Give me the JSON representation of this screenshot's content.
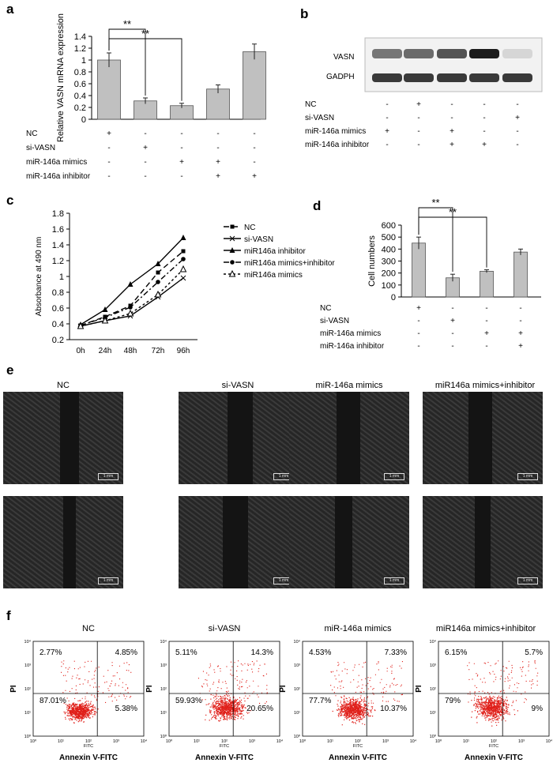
{
  "panels": {
    "a": {
      "letter": "a"
    },
    "b": {
      "letter": "b"
    },
    "c": {
      "letter": "c"
    },
    "d": {
      "letter": "d"
    },
    "e": {
      "letter": "e"
    },
    "f": {
      "letter": "f"
    }
  },
  "chart_data": [
    {
      "id": "a",
      "type": "bar",
      "ylabel": "Relative VASN mRNA expression",
      "ylim": [
        0,
        1.4
      ],
      "yticks": [
        "0",
        "0.2",
        "0.4",
        "0.6",
        "0.8",
        "1",
        "1.2",
        "1.4"
      ],
      "values": [
        1.0,
        0.31,
        0.23,
        0.51,
        1.14
      ],
      "errors": [
        0.12,
        0.05,
        0.04,
        0.07,
        0.13
      ],
      "significance": [
        {
          "from": 0,
          "to": 1,
          "label": "**"
        },
        {
          "from": 0,
          "to": 2,
          "label": "**"
        }
      ],
      "conditions": [
        {
          "name": "NC",
          "signs": [
            "+",
            "-",
            "-",
            "-",
            "-"
          ]
        },
        {
          "name": "si-VASN",
          "signs": [
            "-",
            "+",
            "-",
            "-",
            "-"
          ]
        },
        {
          "name": "miR-146a mimics",
          "signs": [
            "-",
            "-",
            "+",
            "+",
            "-"
          ]
        },
        {
          "name": "miR-146a inhibitor",
          "signs": [
            "-",
            "-",
            "-",
            "+",
            "+"
          ]
        }
      ]
    },
    {
      "id": "c",
      "type": "line",
      "ylabel": "Absorbance at 490 nm",
      "ylim": [
        0.2,
        1.8
      ],
      "yticks": [
        "0.2",
        "0.4",
        "0.6",
        "0.8",
        "1",
        "1.2",
        "1.4",
        "1.6",
        "1.8"
      ],
      "x": [
        "0h",
        "24h",
        "48h",
        "72h",
        "96h"
      ],
      "series": [
        {
          "name": "NC",
          "values": [
            0.38,
            0.49,
            0.63,
            1.05,
            1.32
          ]
        },
        {
          "name": "si-VASN",
          "values": [
            0.37,
            0.44,
            0.5,
            0.74,
            0.98
          ]
        },
        {
          "name": "miR146a inhibitor",
          "values": [
            0.39,
            0.58,
            0.9,
            1.16,
            1.49
          ]
        },
        {
          "name": "miR146a mimics+inhibitor",
          "values": [
            0.38,
            0.48,
            0.61,
            0.93,
            1.22
          ]
        },
        {
          "name": "miR146a mimics",
          "values": [
            0.37,
            0.44,
            0.53,
            0.77,
            1.09
          ]
        }
      ]
    },
    {
      "id": "d",
      "type": "bar",
      "ylabel": "Cell numbers",
      "ylim": [
        0,
        600
      ],
      "yticks": [
        "0",
        "100",
        "200",
        "300",
        "400",
        "500",
        "600"
      ],
      "values": [
        450,
        160,
        215,
        375
      ],
      "errors": [
        50,
        30,
        12,
        25
      ],
      "significance": [
        {
          "from": 0,
          "to": 1,
          "label": "**"
        },
        {
          "from": 0,
          "to": 2,
          "label": "**"
        }
      ],
      "conditions": [
        {
          "name": "NC",
          "signs": [
            "+",
            "-",
            "-",
            "-"
          ]
        },
        {
          "name": "si-VASN",
          "signs": [
            "-",
            "+",
            "-",
            "-"
          ]
        },
        {
          "name": "miR-146a mimics",
          "signs": [
            "-",
            "-",
            "+",
            "+"
          ]
        },
        {
          "name": "miR-146a inhibitor",
          "signs": [
            "-",
            "-",
            "-",
            "+"
          ]
        }
      ]
    }
  ],
  "blot": {
    "bands": [
      "VASN",
      "GADPH"
    ],
    "vasn_intensity": [
      0.55,
      0.6,
      0.7,
      0.95,
      0.12
    ],
    "conditions": [
      {
        "name": "NC",
        "signs": [
          "-",
          "+",
          "-",
          "-",
          "-"
        ]
      },
      {
        "name": "si-VASN",
        "signs": [
          "-",
          "-",
          "-",
          "-",
          "+"
        ]
      },
      {
        "name": "miR-146a mimics",
        "signs": [
          "+",
          "-",
          "+",
          "-",
          "-"
        ]
      },
      {
        "name": "miR-146a inhibitor",
        "signs": [
          "-",
          "-",
          "+",
          "+",
          "-"
        ]
      }
    ]
  },
  "migration": {
    "titles": [
      "NC",
      "si-VASN",
      "miR-146a mimics",
      "miR146a mimics+inhibitor"
    ],
    "scale_label": "1 mm"
  },
  "flow": {
    "titles": [
      "NC",
      "si-VASN",
      "miR-146a mimics",
      "miR146a mimics+inhibitor"
    ],
    "quadrants": [
      {
        "ul": "2.77%",
        "ur": "4.85%",
        "ll": "87.01%",
        "lr": "5.38%"
      },
      {
        "ul": "5.11%",
        "ur": "14.3%",
        "ll": "59.93%",
        "lr": "20.65%"
      },
      {
        "ul": "4.53%",
        "ur": "7.33%",
        "ll": "77.7%",
        "lr": "10.37%"
      },
      {
        "ul": "6.15%",
        "ur": "5.7%",
        "ll": "79%",
        "lr": "9%"
      }
    ],
    "xlabel": "Annexin V-FITC",
    "ylabel": "PI",
    "axis_small": "FITC",
    "ticks": [
      "10⁰",
      "10¹",
      "10²",
      "10³",
      "10⁴"
    ]
  }
}
